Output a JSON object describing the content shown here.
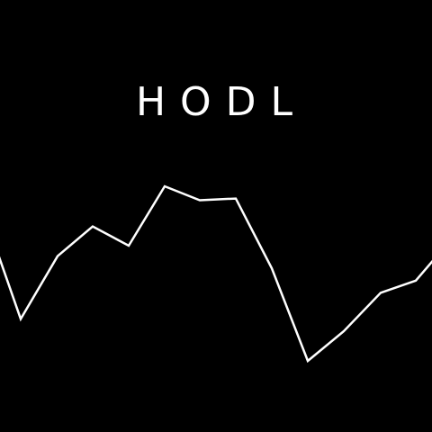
{
  "title": "HODL",
  "colors": {
    "background": "#000000",
    "foreground": "#ffffff"
  },
  "price_line": {
    "shape": "zigzag-line",
    "levels": [
      0.61,
      0.24,
      0.6,
      0.77,
      0.66,
      1.0,
      0.92,
      0.93,
      0.53,
      0.0,
      0.17,
      0.39,
      0.46,
      0.58,
      0.39
    ]
  }
}
